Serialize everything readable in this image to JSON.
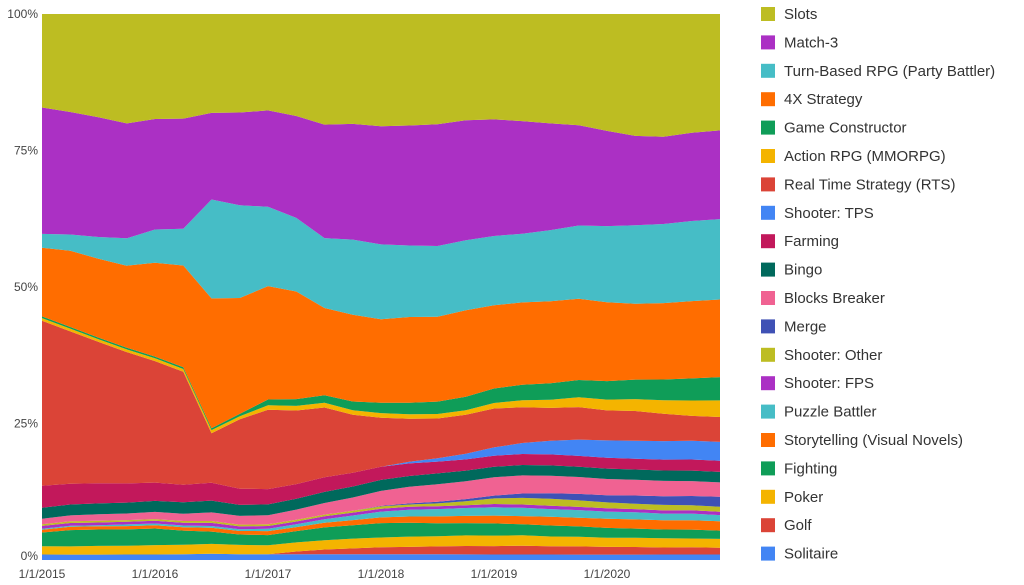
{
  "chart_data": {
    "type": "area",
    "stacked": "percent",
    "title": "",
    "xlabel": "",
    "ylabel": "",
    "ylim": [
      0,
      100
    ],
    "y_ticks": [
      "0%",
      "25%",
      "50%",
      "75%",
      "100%"
    ],
    "x_ticks": [
      "1/1/2015",
      "1/1/2016",
      "1/1/2017",
      "1/1/2018",
      "1/1/2019",
      "1/1/2020"
    ],
    "x": [
      "2015-01",
      "2015-04",
      "2015-07",
      "2015-10",
      "2016-01",
      "2016-04",
      "2016-07",
      "2016-10",
      "2017-01",
      "2017-04",
      "2017-07",
      "2017-10",
      "2018-01",
      "2018-04",
      "2018-07",
      "2018-10",
      "2019-01",
      "2019-04",
      "2019-07",
      "2019-10",
      "2020-01",
      "2020-04",
      "2020-07",
      "2020-10",
      "2021-01"
    ],
    "legend_position": "right",
    "series": [
      {
        "name": "Solitaire",
        "color": "#4285f4",
        "values": [
          1.0,
          1.0,
          1.0,
          1.0,
          1.0,
          1.0,
          1.0,
          1.0,
          1.0,
          1.0,
          1.0,
          1.0,
          1.0,
          1.0,
          1.0,
          1.0,
          1.0,
          1.0,
          1.0,
          1.0,
          1.0,
          1.0,
          1.0,
          1.0,
          1.0
        ]
      },
      {
        "name": "Golf",
        "color": "#db4437",
        "values": [
          0,
          0,
          0,
          0,
          0,
          0,
          0,
          0,
          0,
          0.5,
          0.8,
          1.0,
          1.2,
          1.3,
          1.4,
          1.5,
          1.5,
          1.6,
          1.5,
          1.5,
          1.4,
          1.4,
          1.3,
          1.3,
          1.2
        ]
      },
      {
        "name": "Poker",
        "color": "#f4b400",
        "values": [
          1.5,
          1.5,
          1.6,
          1.6,
          1.7,
          1.7,
          1.6,
          1.6,
          1.6,
          1.6,
          1.6,
          1.7,
          1.7,
          1.8,
          1.8,
          1.9,
          1.9,
          1.9,
          1.8,
          1.8,
          1.7,
          1.7,
          1.7,
          1.6,
          1.6
        ]
      },
      {
        "name": "Fighting",
        "color": "#0f9d58",
        "values": [
          2.5,
          3.0,
          3.0,
          3.0,
          3.0,
          2.5,
          2.0,
          1.8,
          1.8,
          2.0,
          2.2,
          2.3,
          2.5,
          2.4,
          2.3,
          2.2,
          2.2,
          2.0,
          2.0,
          1.9,
          1.8,
          1.7,
          1.6,
          1.6,
          1.5
        ]
      },
      {
        "name": "Storytelling (Visual Novels)",
        "color": "#ff6d00",
        "values": [
          0.5,
          0.6,
          0.6,
          0.6,
          0.6,
          0.6,
          0.6,
          0.6,
          0.7,
          0.7,
          0.8,
          0.9,
          1.0,
          1.1,
          1.2,
          1.3,
          1.4,
          1.5,
          1.6,
          1.6,
          1.7,
          1.7,
          1.7,
          1.7,
          1.7
        ]
      },
      {
        "name": "Puzzle Battler",
        "color": "#46bdc6",
        "values": [
          0.2,
          0.2,
          0.2,
          0.3,
          0.3,
          0.3,
          0.3,
          0.3,
          0.4,
          0.5,
          0.6,
          0.8,
          1.0,
          1.2,
          1.3,
          1.4,
          1.5,
          1.5,
          1.4,
          1.4,
          1.3,
          1.3,
          1.2,
          1.2,
          1.1
        ]
      },
      {
        "name": "Shooter: FPS",
        "color": "#ab30c4",
        "values": [
          0.5,
          0.5,
          0.5,
          0.5,
          0.5,
          0.5,
          0.5,
          0.5,
          0.5,
          0.5,
          0.5,
          0.5,
          0.5,
          0.5,
          0.5,
          0.5,
          0.6,
          0.6,
          0.6,
          0.6,
          0.6,
          0.6,
          0.6,
          0.6,
          0.6
        ]
      },
      {
        "name": "Shooter: Other",
        "color": "#bdbd22",
        "values": [
          0.3,
          0.3,
          0.3,
          0.3,
          0.3,
          0.3,
          0.3,
          0.3,
          0.3,
          0.3,
          0.3,
          0.3,
          0.4,
          0.4,
          0.5,
          0.7,
          1.0,
          1.2,
          1.3,
          1.2,
          1.1,
          1.0,
          1.0,
          0.9,
          0.9
        ]
      },
      {
        "name": "Merge",
        "color": "#3f51b5",
        "values": [
          0,
          0,
          0,
          0,
          0,
          0,
          0,
          0,
          0,
          0,
          0,
          0,
          0.1,
          0.2,
          0.3,
          0.4,
          0.5,
          0.8,
          1.0,
          1.2,
          1.3,
          1.5,
          1.6,
          1.7,
          1.8
        ]
      },
      {
        "name": "Blocks Breaker",
        "color": "#f06292",
        "values": [
          1.0,
          1.1,
          1.2,
          1.2,
          1.3,
          1.3,
          1.4,
          1.5,
          1.6,
          1.8,
          2.0,
          2.3,
          2.6,
          2.9,
          3.1,
          3.2,
          3.3,
          3.3,
          3.2,
          3.1,
          3.0,
          2.9,
          2.8,
          2.7,
          2.6
        ]
      },
      {
        "name": "Bingo",
        "color": "#00695c",
        "values": [
          2.0,
          2.0,
          2.0,
          2.0,
          2.0,
          2.0,
          1.9,
          1.9,
          1.9,
          1.9,
          1.9,
          1.9,
          1.9,
          1.9,
          1.9,
          1.9,
          1.9,
          1.9,
          1.9,
          1.9,
          1.9,
          1.9,
          1.9,
          1.9,
          1.9
        ]
      },
      {
        "name": "Farming",
        "color": "#c2185b",
        "values": [
          4.0,
          3.8,
          3.7,
          3.5,
          3.3,
          3.1,
          2.9,
          2.8,
          2.7,
          2.6,
          2.5,
          2.4,
          2.3,
          2.2,
          2.1,
          2.0,
          2.0,
          2.0,
          2.0,
          2.0,
          2.0,
          2.0,
          2.0,
          2.0,
          2.0
        ]
      },
      {
        "name": "Shooter: TPS",
        "color": "#4285f4",
        "values": [
          0,
          0,
          0,
          0,
          0,
          0,
          0,
          0,
          0,
          0,
          0,
          0,
          0,
          0.3,
          0.6,
          1.0,
          1.5,
          2.0,
          2.5,
          3.0,
          3.2,
          3.3,
          3.4,
          3.4,
          3.4
        ]
      },
      {
        "name": "Real Time Strategy (RTS)",
        "color": "#db4437",
        "values": [
          30.0,
          28.0,
          26.0,
          24.0,
          22.0,
          20.0,
          8.0,
          12.0,
          14.0,
          13.0,
          12.0,
          10.0,
          8.5,
          7.5,
          7.0,
          7.0,
          7.0,
          6.5,
          6.0,
          6.0,
          5.5,
          5.5,
          5.0,
          4.5,
          4.5
        ]
      },
      {
        "name": "Action RPG (MMORPG)",
        "color": "#f4b400",
        "values": [
          0.5,
          0.5,
          0.5,
          0.5,
          0.5,
          0.5,
          0.5,
          0.5,
          0.8,
          0.8,
          0.8,
          0.8,
          0.8,
          0.8,
          0.8,
          0.8,
          1.0,
          1.3,
          1.5,
          1.8,
          2.0,
          2.2,
          2.5,
          2.8,
          3.0
        ]
      },
      {
        "name": "Game Constructor",
        "color": "#0f9d58",
        "values": [
          0.3,
          0.3,
          0.3,
          0.3,
          0.3,
          0.3,
          0.3,
          0.4,
          1.0,
          1.2,
          1.3,
          1.5,
          1.8,
          2.0,
          2.2,
          2.4,
          2.6,
          2.8,
          3.0,
          3.2,
          3.4,
          3.6,
          3.8,
          4.0,
          4.2
        ]
      },
      {
        "name": "4X Strategy",
        "color": "#ff6d00",
        "values": [
          12.5,
          14.0,
          14.5,
          15.0,
          17.0,
          18.0,
          21.0,
          20.0,
          20.0,
          19.0,
          15.0,
          15.0,
          14.5,
          15.0,
          15.0,
          15.5,
          15.0,
          15.0,
          15.0,
          15.0,
          14.5,
          14.0,
          14.0,
          14.0,
          14.0
        ]
      },
      {
        "name": "Turn-Based RPG (Party Battler)",
        "color": "#46bdc6",
        "values": [
          2.5,
          3.0,
          4.0,
          5.0,
          6.0,
          6.5,
          16.0,
          16.0,
          14.0,
          13.0,
          12.0,
          13.0,
          13.0,
          12.5,
          12.5,
          12.5,
          12.5,
          12.5,
          13.0,
          13.5,
          14.0,
          14.5,
          14.5,
          14.5,
          14.5
        ]
      },
      {
        "name": "Match-3",
        "color": "#ab30c4",
        "values": [
          23.0,
          22.5,
          22.0,
          21.0,
          20.0,
          19.5,
          14.0,
          16.0,
          17.0,
          18.0,
          19.5,
          20.0,
          20.5,
          21.0,
          21.5,
          21.5,
          21.0,
          20.5,
          19.5,
          18.5,
          17.5,
          16.5,
          16.0,
          16.0,
          16.0
        ]
      },
      {
        "name": "Slots",
        "color": "#bdbd22",
        "values": [
          17.0,
          18.0,
          19.0,
          20.0,
          19.0,
          18.5,
          16.0,
          17.0,
          17.0,
          18.0,
          19.0,
          19.0,
          19.5,
          19.5,
          19.5,
          19.0,
          19.0,
          19.5,
          20.0,
          20.5,
          21.5,
          22.5,
          22.5,
          21.5,
          21.0
        ]
      }
    ]
  }
}
